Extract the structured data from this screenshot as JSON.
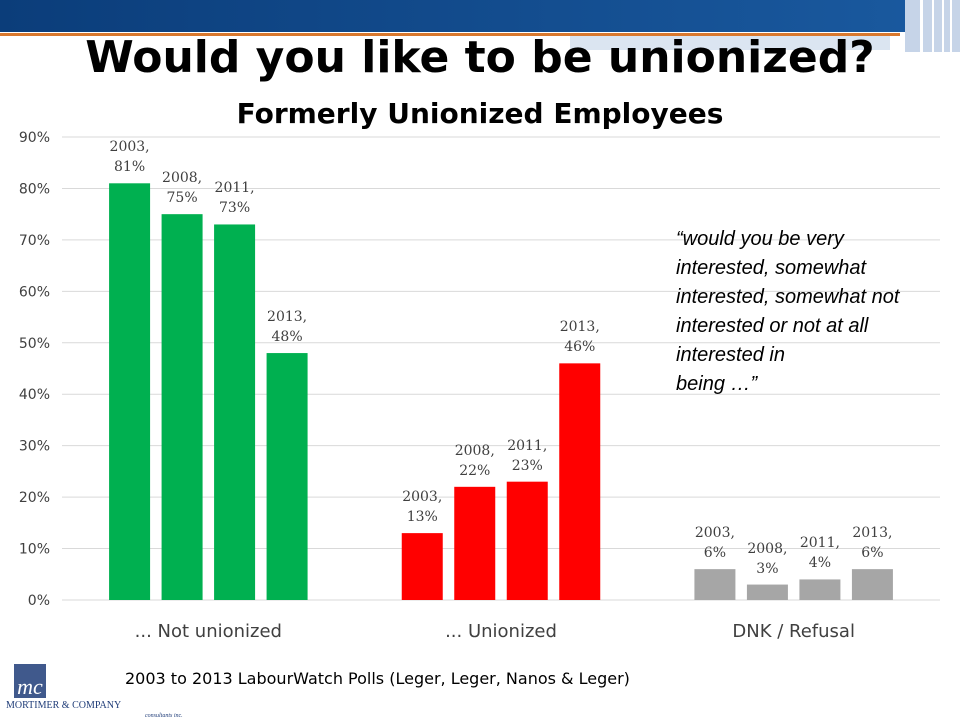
{
  "chart_data": {
    "type": "bar",
    "title": "Would you like to be unionized?",
    "subtitle": "Formerly Unionized Employees",
    "categories": [
      "... Not unionized",
      "... Unionized",
      "DNK / Refusal"
    ],
    "colors": [
      "#00b050",
      "#ff0000",
      "#a6a6a6"
    ],
    "series": [
      {
        "values": [
          81,
          13,
          6
        ],
        "value_labels": [
          "2003, 81%",
          "2003, 13%",
          "2003, 6%"
        ]
      },
      {
        "values": [
          75,
          22,
          3
        ],
        "value_labels": [
          "2008, 75%",
          "2008, 22%",
          "2008, 3%"
        ]
      },
      {
        "values": [
          73,
          23,
          4
        ],
        "value_labels": [
          "2011, 73%",
          "2011, 23%",
          "2011, 4%"
        ]
      },
      {
        "values": [
          48,
          46,
          6
        ],
        "value_labels": [
          "2013, 48%",
          "2013, 46%",
          "2013, 6%"
        ]
      }
    ],
    "ylim": [
      0,
      90
    ],
    "yticks": [
      {
        "value": 0,
        "label": "0%"
      },
      {
        "value": 10,
        "label": "10%"
      },
      {
        "value": 20,
        "label": "20%"
      },
      {
        "value": 30,
        "label": "30%"
      },
      {
        "value": 40,
        "label": "40%"
      },
      {
        "value": 50,
        "label": "50%"
      },
      {
        "value": 60,
        "label": "60%"
      },
      {
        "value": 70,
        "label": "70%"
      },
      {
        "value": 80,
        "label": "80%"
      },
      {
        "value": 90,
        "label": "90%"
      }
    ],
    "grid": true,
    "annotation": [
      "“would you be very",
      "interested, somewhat",
      "interested, somewhat not",
      "interested or not at all",
      "interested in",
      "being …”"
    ],
    "source": "2003 to 2013 LabourWatch Polls (Leger, Leger, Nanos & Leger)"
  },
  "logo": {
    "mark": "mc",
    "name": "Mortimer & Company",
    "tagline": "consultants inc."
  }
}
